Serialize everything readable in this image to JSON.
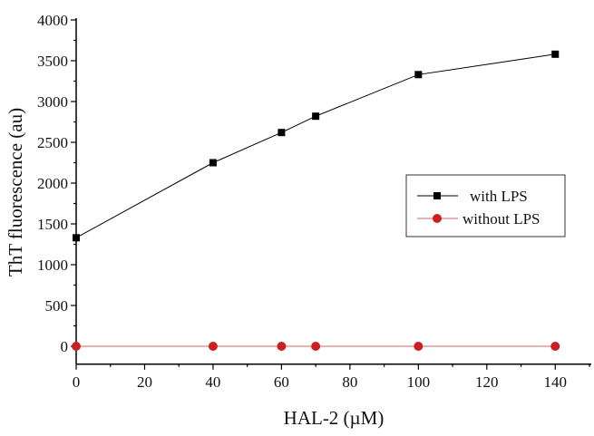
{
  "chart_data": {
    "type": "line",
    "title": "",
    "xlabel": "HAL-2 (µM)",
    "ylabel": "ThT fluorescence (au)",
    "xlim": [
      0,
      150
    ],
    "ylim": [
      -220,
      4000
    ],
    "xticks": [
      0,
      20,
      40,
      60,
      80,
      100,
      120,
      140
    ],
    "yticks": [
      0,
      500,
      1000,
      1500,
      2000,
      2500,
      3000,
      3500,
      4000
    ],
    "grid": false,
    "legend_position": "center-right",
    "series": [
      {
        "name": "with LPS",
        "color": "#000000",
        "marker": "square",
        "x": [
          0,
          40,
          60,
          70,
          100,
          140
        ],
        "y": [
          1330,
          2250,
          2620,
          2820,
          3330,
          3580
        ]
      },
      {
        "name": "without LPS",
        "color": "#cc1f1f",
        "line_color": "#c86a6a",
        "marker": "circle",
        "x": [
          0,
          40,
          60,
          70,
          100,
          140
        ],
        "y": [
          0,
          0,
          0,
          0,
          0,
          0
        ]
      }
    ]
  }
}
